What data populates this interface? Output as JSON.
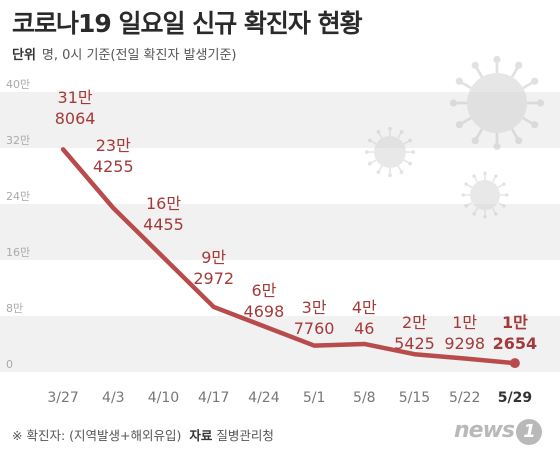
{
  "header": {
    "title": "코로나19 일요일 신규 확진자 현황",
    "unit_label": "단위",
    "unit_text": "명, 0시 기준(전일 확진자 발생기준)"
  },
  "footer": {
    "note": "※ 확진자: (지역발생+해외유입)",
    "source_label": "자료",
    "source": "질병관리청"
  },
  "logo": {
    "text": "news",
    "mark": "1"
  },
  "colors": {
    "line": "#b84c4c",
    "label": "#a43b3b",
    "band": "#f1f1f1",
    "axis_text": "#777777"
  },
  "icons": [
    "virus-icon"
  ],
  "chart_data": {
    "type": "line",
    "title": "코로나19 일요일 신규 확진자 현황",
    "x": [
      "3/27",
      "4/3",
      "4/10",
      "4/17",
      "4/24",
      "5/1",
      "5/8",
      "5/15",
      "5/22",
      "5/29"
    ],
    "values": [
      318064,
      234255,
      null,
      92972,
      null,
      37760,
      40046,
      25425,
      19298,
      12654
    ],
    "ylim": [
      0,
      400000
    ],
    "yticks": [
      "0",
      "8만",
      "16만",
      "24만",
      "32만",
      "40만"
    ],
    "point_labels": [
      {
        "x": "3/27",
        "line1": "31만",
        "line2": "8064"
      },
      {
        "x": "4/3",
        "line1": "23만",
        "line2": "4255"
      },
      {
        "x": "4/10",
        "line1": "16만",
        "line2": "4455"
      },
      {
        "x": "4/17",
        "line1": "9만",
        "line2": "2972"
      },
      {
        "x": "4/24",
        "line1": "6만",
        "line2": "4698"
      },
      {
        "x": "5/1",
        "line1": "3만",
        "line2": "7760"
      },
      {
        "x": "5/8",
        "line1": "4만",
        "line2": "46"
      },
      {
        "x": "5/15",
        "line1": "2만",
        "line2": "5425"
      },
      {
        "x": "5/22",
        "line1": "1만",
        "line2": "9298"
      },
      {
        "x": "5/29",
        "line1": "1만",
        "line2": "2654"
      }
    ],
    "grid": "horizontal bands",
    "legend": "none"
  }
}
